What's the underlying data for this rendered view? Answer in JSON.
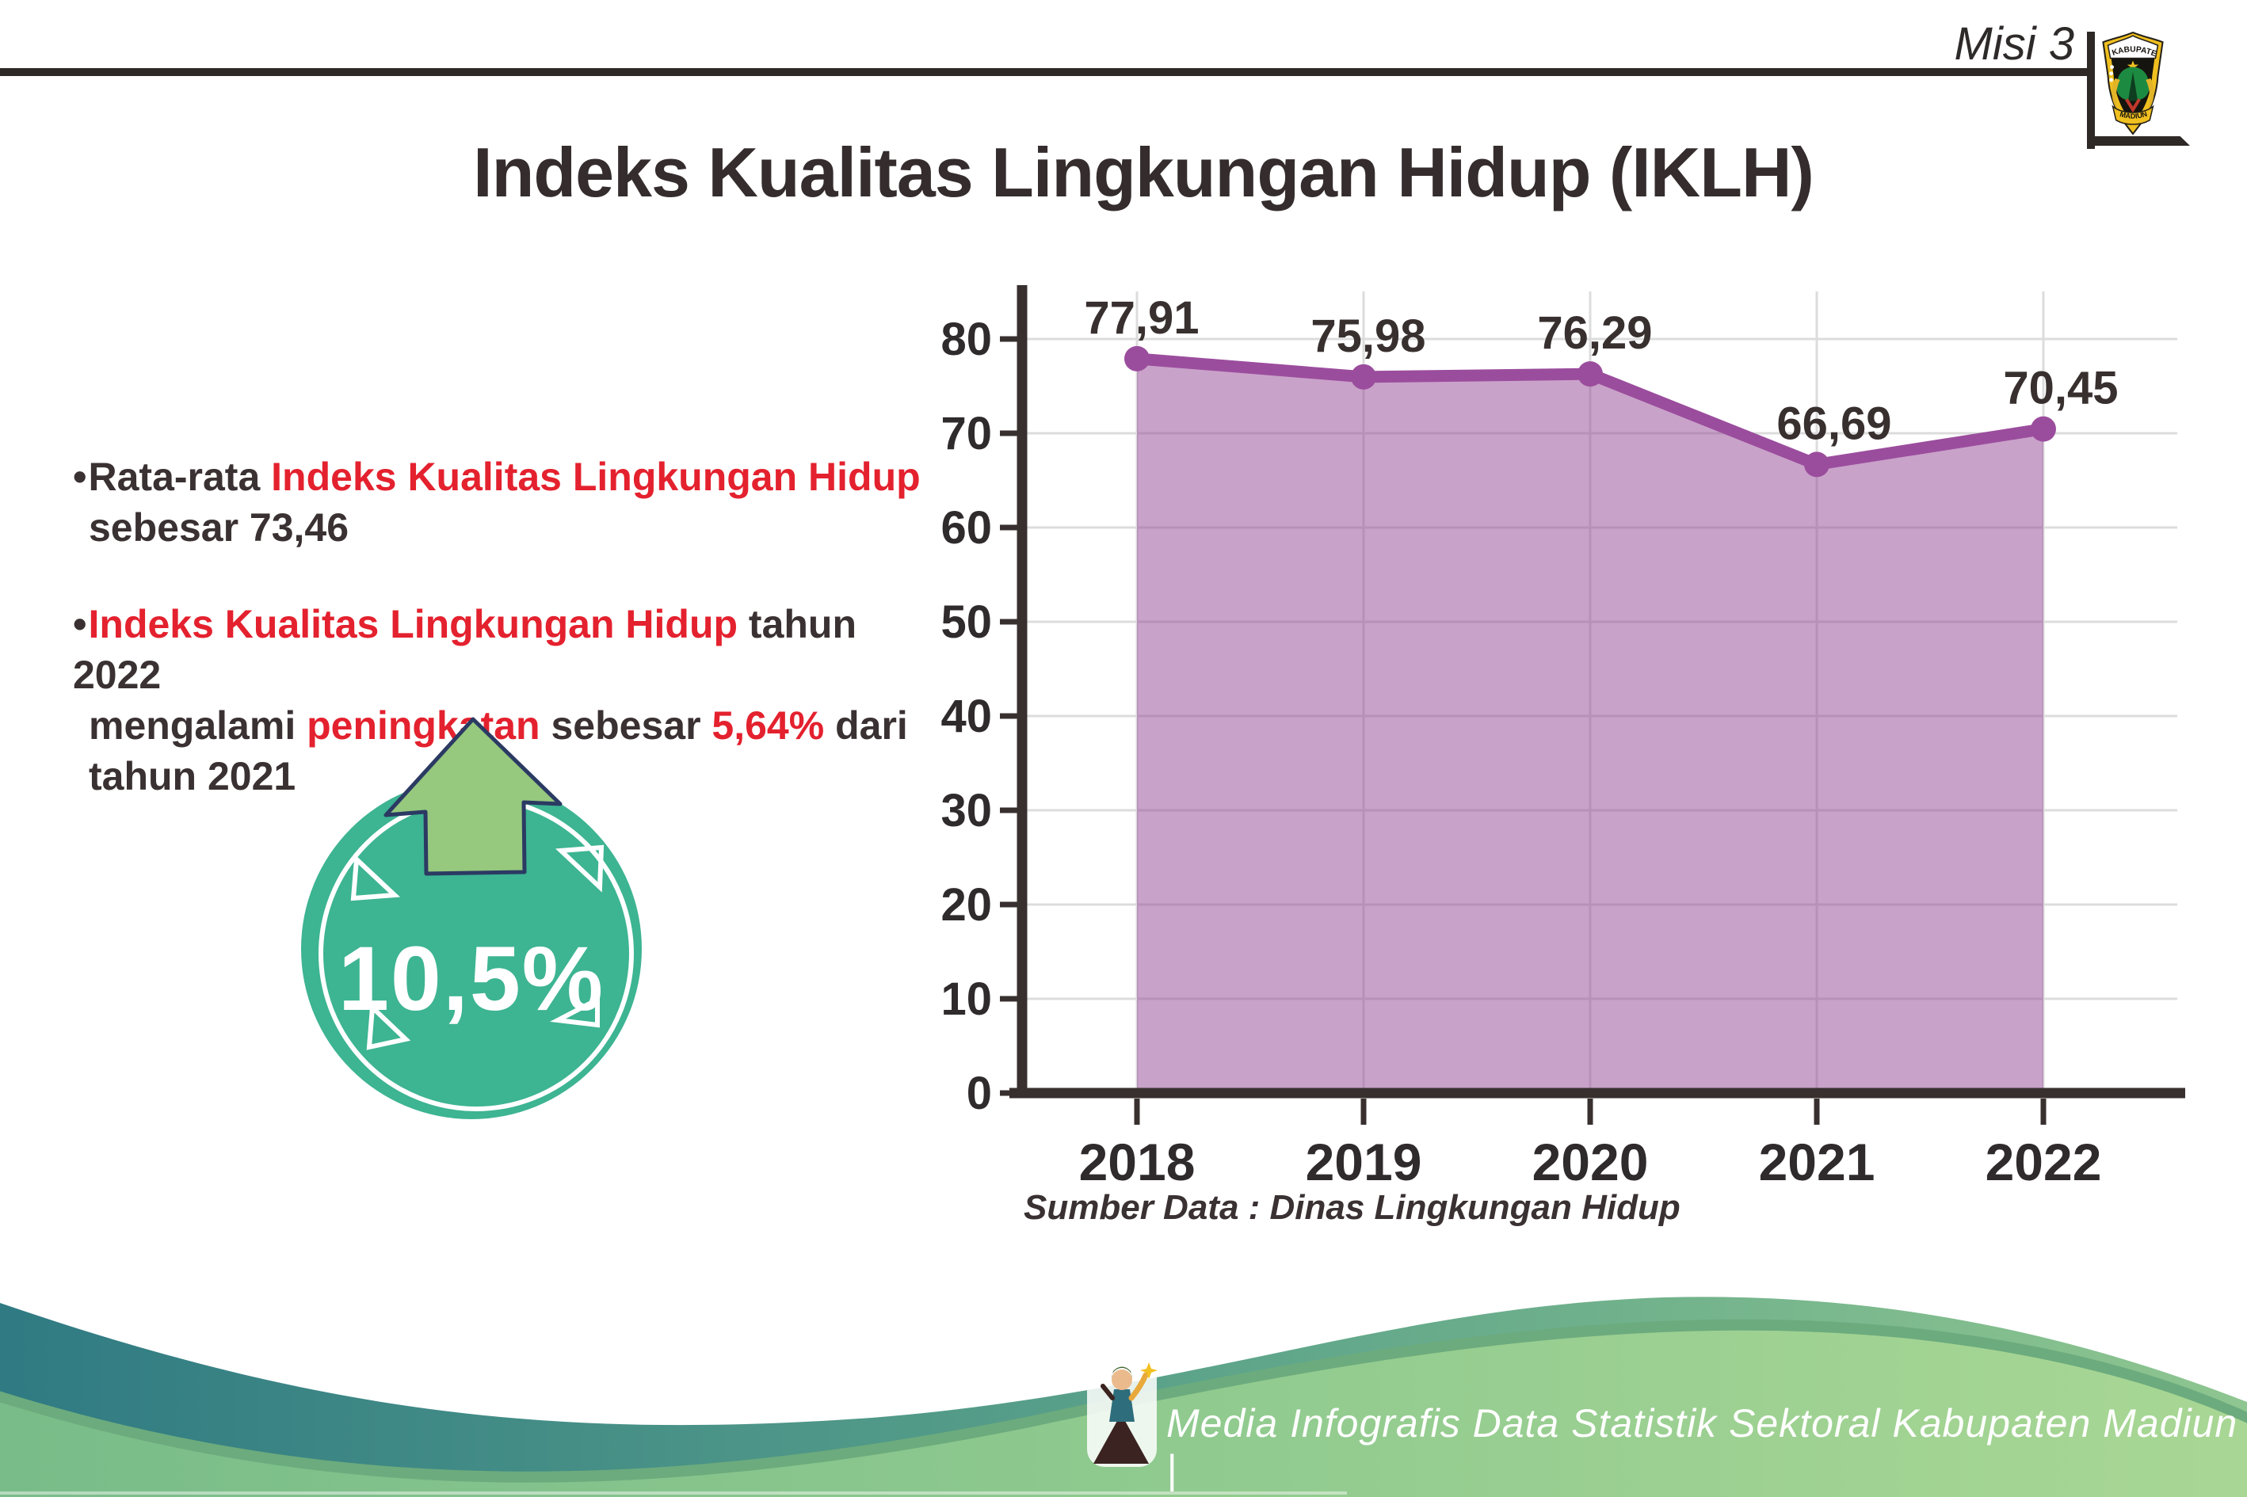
{
  "header": {
    "misi_label": "Misi 3",
    "logo": {
      "top_text": "KABUPATEN",
      "bottom_text": "MADIUN"
    }
  },
  "title": "Indeks Kualitas Lingkungan Hidup (IKLH)",
  "bullets": {
    "marker": "•",
    "b1": {
      "l1_dark": "Rata-rata ",
      "l1_red": "Indeks Kualitas Lingkungan Hidup",
      "l2_dark": "sebesar 73,46"
    },
    "b2": {
      "l1_red": "Indeks Kualitas Lingkungan Hidup",
      "l1_dark": " tahun 2022",
      "l2_d1": "mengalami ",
      "l2_r1": "peningkatan",
      "l2_d2": " sebesar ",
      "l2_r2": "5,64%",
      "l2_d3": " dari",
      "l3_dark": "tahun 2021"
    }
  },
  "badge": {
    "value": "10,5%"
  },
  "chart_data": {
    "type": "area",
    "title": "",
    "categories": [
      "2018",
      "2019",
      "2020",
      "2021",
      "2022"
    ],
    "values": [
      77.91,
      75.98,
      76.29,
      66.69,
      70.45
    ],
    "value_labels": [
      "77,91",
      "75,98",
      "76,29",
      "66,69",
      "70,45"
    ],
    "ylim": [
      0,
      80
    ],
    "ytick_step": 10,
    "grid": true,
    "legend": "none",
    "line_color": "#9B4D9D",
    "marker_color": "#9B4D9D",
    "fill_color": "rgba(151,77,153,0.52)",
    "axis_color": "#38302F",
    "grid_color": "#DCDCDC",
    "tick_label_color": "#2F2A2B"
  },
  "source_note": "Sumber Data : Dinas Lingkungan Hidup",
  "footer": {
    "caption": "Media Infografis Data Statistik Sektoral Kabupaten Madiun |"
  },
  "colors": {
    "accent_red": "#E4212E",
    "text_dark": "#3A3132",
    "badge_teal": "#3DB492",
    "arrow_green": "#96C87E",
    "arrow_outline": "#2B3A63",
    "wave_teal": "#2F7A83",
    "wave_green": "#A9D795"
  }
}
